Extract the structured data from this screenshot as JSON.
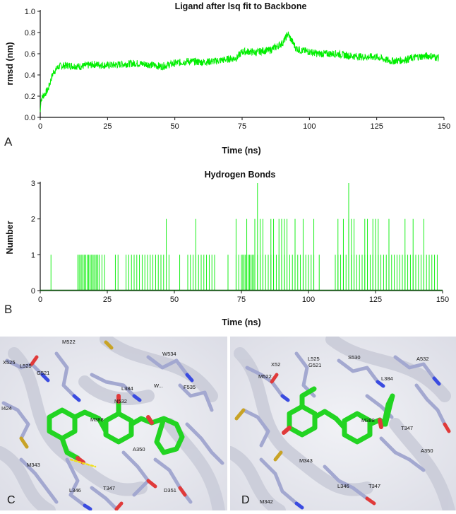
{
  "chart_data": [
    {
      "panel": "A",
      "type": "line",
      "title": "Ligand after lsq fit to Backbone",
      "xlabel": "Time (ns)",
      "ylabel": "rmsd (nm)",
      "xlim": [
        0,
        150
      ],
      "ylim": [
        0,
        1.0
      ],
      "xticks": [
        "0",
        "25",
        "50",
        "75",
        "100",
        "125",
        "150"
      ],
      "yticks": [
        "0.0",
        "0.2",
        "0.4",
        "0.6",
        "0.8",
        "1.0"
      ],
      "color": "#00ee00",
      "x": [
        0,
        0.5,
        1,
        2,
        3,
        4,
        5,
        7,
        10,
        15,
        20,
        25,
        30,
        35,
        40,
        45,
        50,
        55,
        60,
        65,
        70,
        73,
        75,
        78,
        80,
        83,
        85,
        88,
        90,
        91,
        92,
        93,
        94,
        95,
        97,
        100,
        103,
        105,
        110,
        115,
        120,
        125,
        130,
        135,
        140,
        145,
        148
      ],
      "y": [
        0.05,
        0.18,
        0.2,
        0.23,
        0.27,
        0.36,
        0.43,
        0.48,
        0.49,
        0.48,
        0.5,
        0.49,
        0.5,
        0.51,
        0.5,
        0.48,
        0.51,
        0.53,
        0.52,
        0.53,
        0.55,
        0.56,
        0.62,
        0.62,
        0.61,
        0.63,
        0.63,
        0.67,
        0.7,
        0.74,
        0.79,
        0.74,
        0.7,
        0.65,
        0.63,
        0.62,
        0.6,
        0.6,
        0.6,
        0.58,
        0.57,
        0.57,
        0.53,
        0.54,
        0.57,
        0.58,
        0.56
      ]
    },
    {
      "panel": "B",
      "type": "bar",
      "title": "Hydrogen Bonds",
      "xlabel": "Time (ns)",
      "ylabel": "Number",
      "xlim": [
        0,
        150
      ],
      "ylim": [
        0,
        3
      ],
      "xticks": [
        "0",
        "25",
        "50",
        "75",
        "100",
        "125",
        "150"
      ],
      "yticks": [
        "0",
        "1",
        "2",
        "3"
      ],
      "color": "#00ee00",
      "spikes_value_1": [
        4,
        14,
        14.5,
        15,
        15.5,
        16,
        16.5,
        17,
        17.5,
        18,
        18.5,
        19,
        19.5,
        20,
        20.5,
        21,
        21.5,
        22,
        23,
        24,
        28,
        29,
        32,
        33,
        34,
        35,
        36,
        37,
        38,
        39,
        40,
        41,
        42,
        43,
        44,
        45,
        46,
        48,
        52,
        55,
        56,
        57,
        58,
        59,
        60,
        61,
        62,
        63,
        64,
        65,
        70,
        73,
        74,
        75,
        75.5,
        76,
        76.5,
        77,
        77.5,
        78,
        78.5,
        79,
        79.5,
        80,
        81,
        82,
        83,
        84,
        85,
        86,
        87,
        88,
        89,
        90,
        91,
        92,
        93,
        94,
        95,
        96,
        97,
        98,
        99,
        100,
        101,
        102,
        104,
        110,
        111,
        112,
        113,
        114,
        115,
        116,
        117,
        118,
        119,
        120,
        121,
        122,
        123,
        124,
        125,
        126,
        127,
        128,
        129,
        130,
        131,
        132,
        133,
        134,
        135,
        136,
        137,
        138,
        139,
        140,
        141,
        142,
        143,
        144,
        145,
        146,
        147,
        148
      ],
      "spikes_value_2": [
        47,
        58,
        73,
        77,
        80,
        82,
        83,
        86,
        87,
        89,
        90,
        91,
        92,
        95,
        98,
        102,
        111,
        113,
        115,
        116,
        117,
        121,
        122,
        124,
        125,
        126,
        130,
        136,
        139,
        143
      ],
      "spikes_value_3": [
        81,
        115
      ]
    }
  ],
  "panels": {
    "A": "A",
    "B": "B",
    "C": "C",
    "D": "D"
  },
  "residues_c": [
    "M522",
    "X525",
    "L525",
    "G521",
    "W534",
    "N532",
    "L384",
    "M388",
    "W...",
    "F535",
    "I424",
    "M343",
    "A350",
    "L346",
    "T347",
    "D351"
  ],
  "residues_d": [
    "X52",
    "L525",
    "G521",
    "S530",
    "M522",
    "A532",
    "L384",
    "M388",
    "T347",
    "M343",
    "L346",
    "T347",
    "M342",
    "A350"
  ]
}
